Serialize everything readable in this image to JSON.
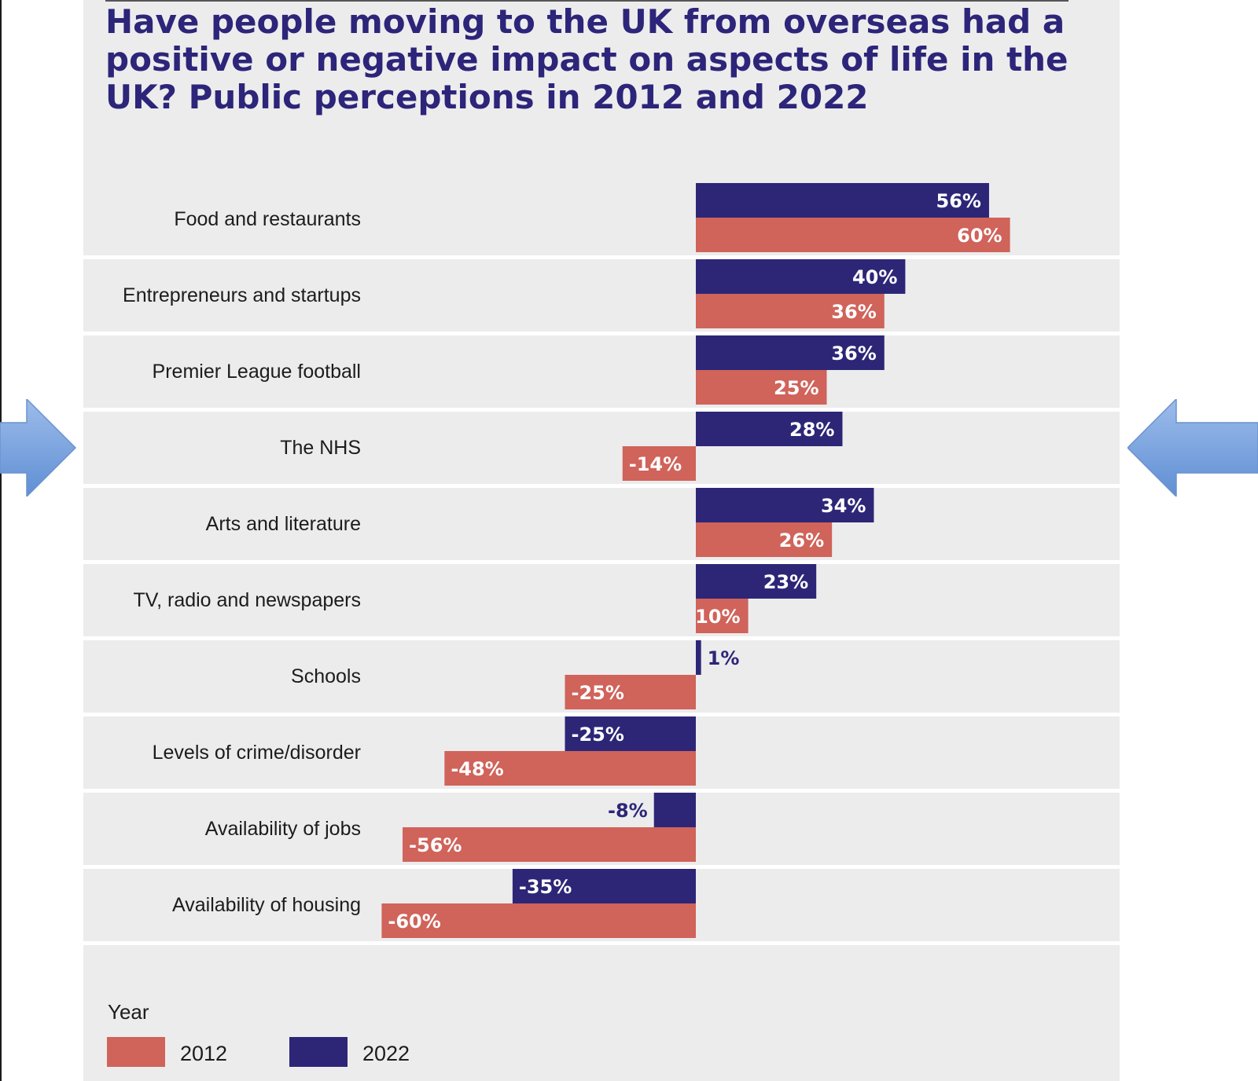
{
  "chart_data": {
    "type": "bar",
    "orientation": "horizontal",
    "title": "Have people moving to the UK from overseas had a positive or negative impact on aspects of life in the UK? Public perceptions in 2012 and 2022",
    "categories": [
      "Food and restaurants",
      "Entrepreneurs and startups",
      "Premier League football",
      "The NHS",
      "Arts and literature",
      "TV, radio and newspapers",
      "Schools",
      "Levels of crime/disorder",
      "Availability of jobs",
      "Availability of housing"
    ],
    "series": [
      {
        "name": "2022",
        "color": "#2d2677",
        "values": [
          56,
          40,
          36,
          28,
          34,
          23,
          1,
          -25,
          -8,
          -35
        ]
      },
      {
        "name": "2012",
        "color": "#d0635a",
        "values": [
          60,
          36,
          25,
          -14,
          26,
          10,
          -25,
          -48,
          -56,
          -60
        ]
      }
    ],
    "value_suffix": "%",
    "xlim": [
      -60,
      60
    ],
    "grid": false,
    "legend": {
      "title": "Year",
      "position": "bottom-left",
      "order": [
        "2012",
        "2022"
      ]
    }
  },
  "decor": {
    "arrow_color": "#7aa4dd",
    "arrows": [
      "right-arrow-icon",
      "left-arrow-icon"
    ]
  }
}
